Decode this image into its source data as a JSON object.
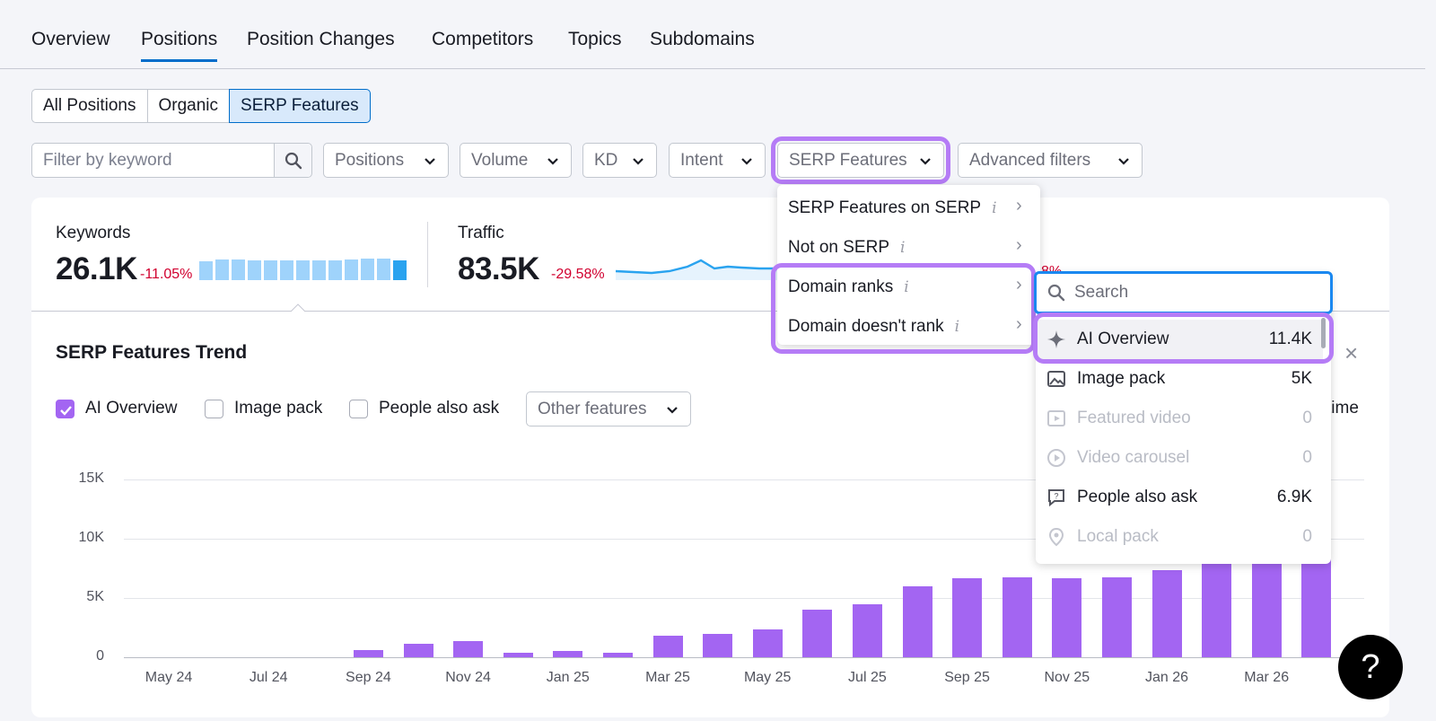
{
  "tabs": [
    "Overview",
    "Positions",
    "Position Changes",
    "Competitors",
    "Topics",
    "Subdomains"
  ],
  "segments": [
    "All Positions",
    "Organic",
    "SERP Features"
  ],
  "filter": {
    "placeholder": "Filter by keyword"
  },
  "dropdowns": {
    "positions": "Positions",
    "volume": "Volume",
    "kd": "KD",
    "intent": "Intent",
    "serp": "SERP Features",
    "advanced": "Advanced filters"
  },
  "stats": {
    "keywords": {
      "label": "Keywords",
      "value": "26.1K",
      "delta": "-11.05%",
      "spark": [
        0.75,
        0.82,
        0.82,
        0.78,
        0.78,
        0.8,
        0.8,
        0.8,
        0.8,
        0.82,
        0.86,
        0.84,
        0.8
      ]
    },
    "traffic": {
      "label": "Traffic",
      "value": "83.5K",
      "delta": "-29.58%",
      "partial_delta": "8%"
    }
  },
  "serp_menu": {
    "items": [
      "SERP Features on SERP",
      "Not on SERP",
      "Domain ranks",
      "Domain doesn't rank"
    ],
    "info_glyph": "i",
    "arrow_glyph": "›"
  },
  "submenu": {
    "search_placeholder": "Search",
    "items": [
      {
        "label": "AI Overview",
        "count": "11.4K",
        "icon": "sparkle-icon",
        "disabled": false
      },
      {
        "label": "Image pack",
        "count": "5K",
        "icon": "image-icon",
        "disabled": false
      },
      {
        "label": "Featured video",
        "count": "0",
        "icon": "video-icon",
        "disabled": true
      },
      {
        "label": "Video carousel",
        "count": "0",
        "icon": "play-circle-icon",
        "disabled": true
      },
      {
        "label": "People also ask",
        "count": "6.9K",
        "icon": "question-icon",
        "disabled": false
      },
      {
        "label": "Local pack",
        "count": "0",
        "icon": "location-icon",
        "disabled": true
      }
    ]
  },
  "trend": {
    "title": "SERP Features Trend",
    "checks": [
      {
        "label": "AI Overview",
        "checked": true
      },
      {
        "label": "Image pack",
        "checked": false
      },
      {
        "label": "People also ask",
        "checked": false
      }
    ],
    "other_features": "Other features",
    "partial_right_label": "time",
    "close_glyph": "×"
  },
  "colors": {
    "accent": "#a365f2",
    "blue": "#006dca",
    "negative": "#d1002f",
    "highlight": "#b57cf6"
  },
  "help": {
    "label": "?"
  },
  "chart_data": {
    "type": "bar",
    "yticks": [
      "15K",
      "10K",
      "5K",
      "0"
    ],
    "ylim": [
      0,
      15000
    ],
    "xticks": [
      "May 24",
      "Jul 24",
      "Sep 24",
      "Nov 24",
      "Jan 25",
      "Mar 25",
      "May 25",
      "Jul 25",
      "Sep 25",
      "Nov 25",
      "Jan 26",
      "Mar 26"
    ],
    "series": [
      {
        "name": "AI Overview",
        "values": [
          0,
          0,
          0,
          0,
          600,
          1100,
          1400,
          350,
          500,
          350,
          1800,
          1950,
          2350,
          4050,
          4500,
          6000,
          6700,
          6750,
          6650,
          6750,
          7350,
          8000,
          8500,
          11400
        ]
      }
    ]
  }
}
